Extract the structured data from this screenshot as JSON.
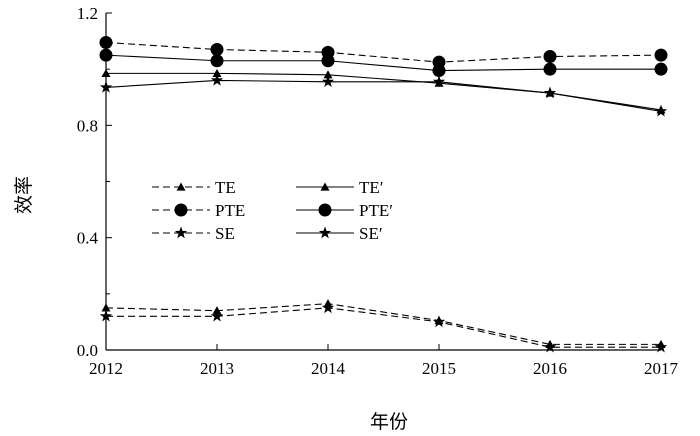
{
  "chart_data": {
    "type": "line",
    "xlabel": "年份",
    "ylabel": "效率",
    "categories": [
      "2012",
      "2013",
      "2014",
      "2015",
      "2016",
      "2017"
    ],
    "ylim": [
      0.0,
      1.2
    ],
    "yticks": [
      "0.0",
      "0.4",
      "0.8",
      "1.2"
    ],
    "yminor": [
      0.2,
      0.6,
      1.0
    ],
    "grid": false,
    "legend_position": "center-left",
    "series": [
      {
        "name": "TE",
        "style": "dashed",
        "marker": "triangle",
        "values": [
          0.15,
          0.14,
          0.165,
          0.105,
          0.02,
          0.02
        ]
      },
      {
        "name": "PTE",
        "style": "dashed",
        "marker": "circle",
        "values": [
          1.095,
          1.07,
          1.06,
          1.025,
          1.045,
          1.05
        ]
      },
      {
        "name": "SE",
        "style": "dashed",
        "marker": "star",
        "values": [
          0.12,
          0.12,
          0.15,
          0.1,
          0.01,
          0.01
        ]
      },
      {
        "name": "TE′",
        "style": "solid",
        "marker": "triangle",
        "values": [
          0.985,
          0.985,
          0.98,
          0.95,
          0.915,
          0.855
        ]
      },
      {
        "name": "PTE′",
        "style": "solid",
        "marker": "circle",
        "values": [
          1.05,
          1.03,
          1.03,
          0.995,
          1.0,
          1.0
        ]
      },
      {
        "name": "SE′",
        "style": "solid",
        "marker": "star",
        "values": [
          0.935,
          0.96,
          0.955,
          0.955,
          0.915,
          0.85
        ]
      }
    ]
  }
}
